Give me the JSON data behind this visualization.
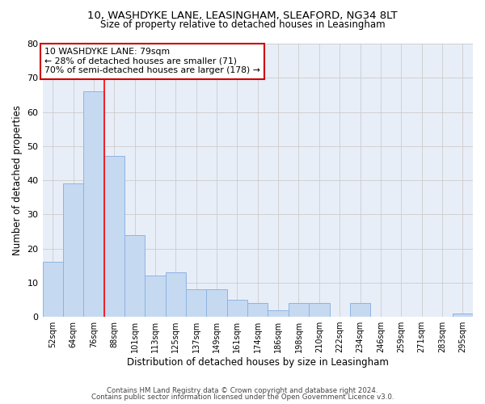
{
  "title1": "10, WASHDYKE LANE, LEASINGHAM, SLEAFORD, NG34 8LT",
  "title2": "Size of property relative to detached houses in Leasingham",
  "xlabel": "Distribution of detached houses by size in Leasingham",
  "ylabel": "Number of detached properties",
  "categories": [
    "52sqm",
    "64sqm",
    "76sqm",
    "88sqm",
    "101sqm",
    "113sqm",
    "125sqm",
    "137sqm",
    "149sqm",
    "161sqm",
    "174sqm",
    "186sqm",
    "198sqm",
    "210sqm",
    "222sqm",
    "234sqm",
    "246sqm",
    "259sqm",
    "271sqm",
    "283sqm",
    "295sqm"
  ],
  "values": [
    16,
    39,
    66,
    47,
    24,
    12,
    13,
    8,
    8,
    5,
    4,
    2,
    4,
    4,
    0,
    4,
    0,
    0,
    0,
    0,
    1
  ],
  "bar_color": "#c5d9f1",
  "bar_edge_color": "#8db4e2",
  "red_line_x": 2,
  "annotation_text": "10 WASHDYKE LANE: 79sqm\n← 28% of detached houses are smaller (71)\n70% of semi-detached houses are larger (178) →",
  "annotation_box_color": "#ffffff",
  "annotation_box_edge_color": "#cc0000",
  "ylim": [
    0,
    80
  ],
  "yticks": [
    0,
    10,
    20,
    30,
    40,
    50,
    60,
    70,
    80
  ],
  "grid_color": "#cccccc",
  "bg_color": "#e8eef8",
  "footnote1": "Contains HM Land Registry data © Crown copyright and database right 2024.",
  "footnote2": "Contains public sector information licensed under the Open Government Licence v3.0."
}
